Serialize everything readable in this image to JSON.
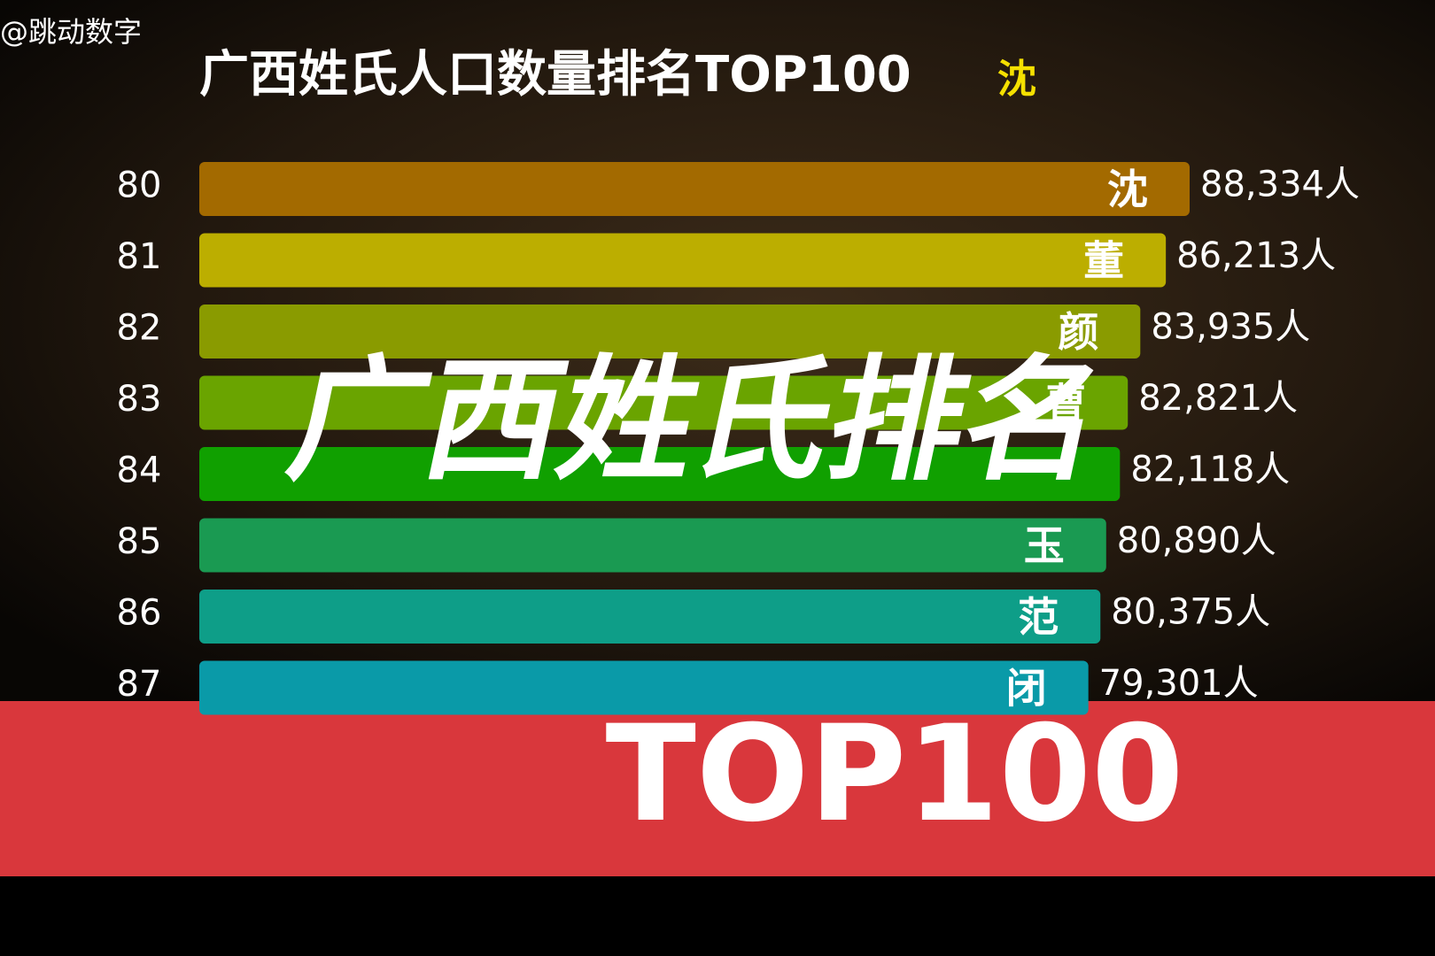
{
  "watermark": "@跳动数字",
  "overlay_title": "广西姓氏排名",
  "banner": "TOP100",
  "chart_data": {
    "type": "bar",
    "orientation": "horizontal",
    "title": "广西姓氏人口数量排名TOP100",
    "current_label": "沈",
    "ranks": [
      80,
      81,
      82,
      83,
      84,
      85,
      86,
      87
    ],
    "categories": [
      "沈",
      "董",
      "颜",
      "曹",
      null,
      "玉",
      "范",
      "闭"
    ],
    "values": [
      88334,
      86213,
      83935,
      82821,
      82118,
      80890,
      80375,
      79301
    ],
    "value_labels": [
      "88,334人",
      "86,213人",
      "83,935人",
      "82,821人",
      "82,118人",
      "80,890人",
      "80,375人",
      "79,301人"
    ],
    "colors": [
      "#a36a00",
      "#bcae00",
      "#8a9b00",
      "#6aa400",
      "#10a000",
      "#1a9a52",
      "#0e9e88",
      "#0a9aa8"
    ]
  }
}
